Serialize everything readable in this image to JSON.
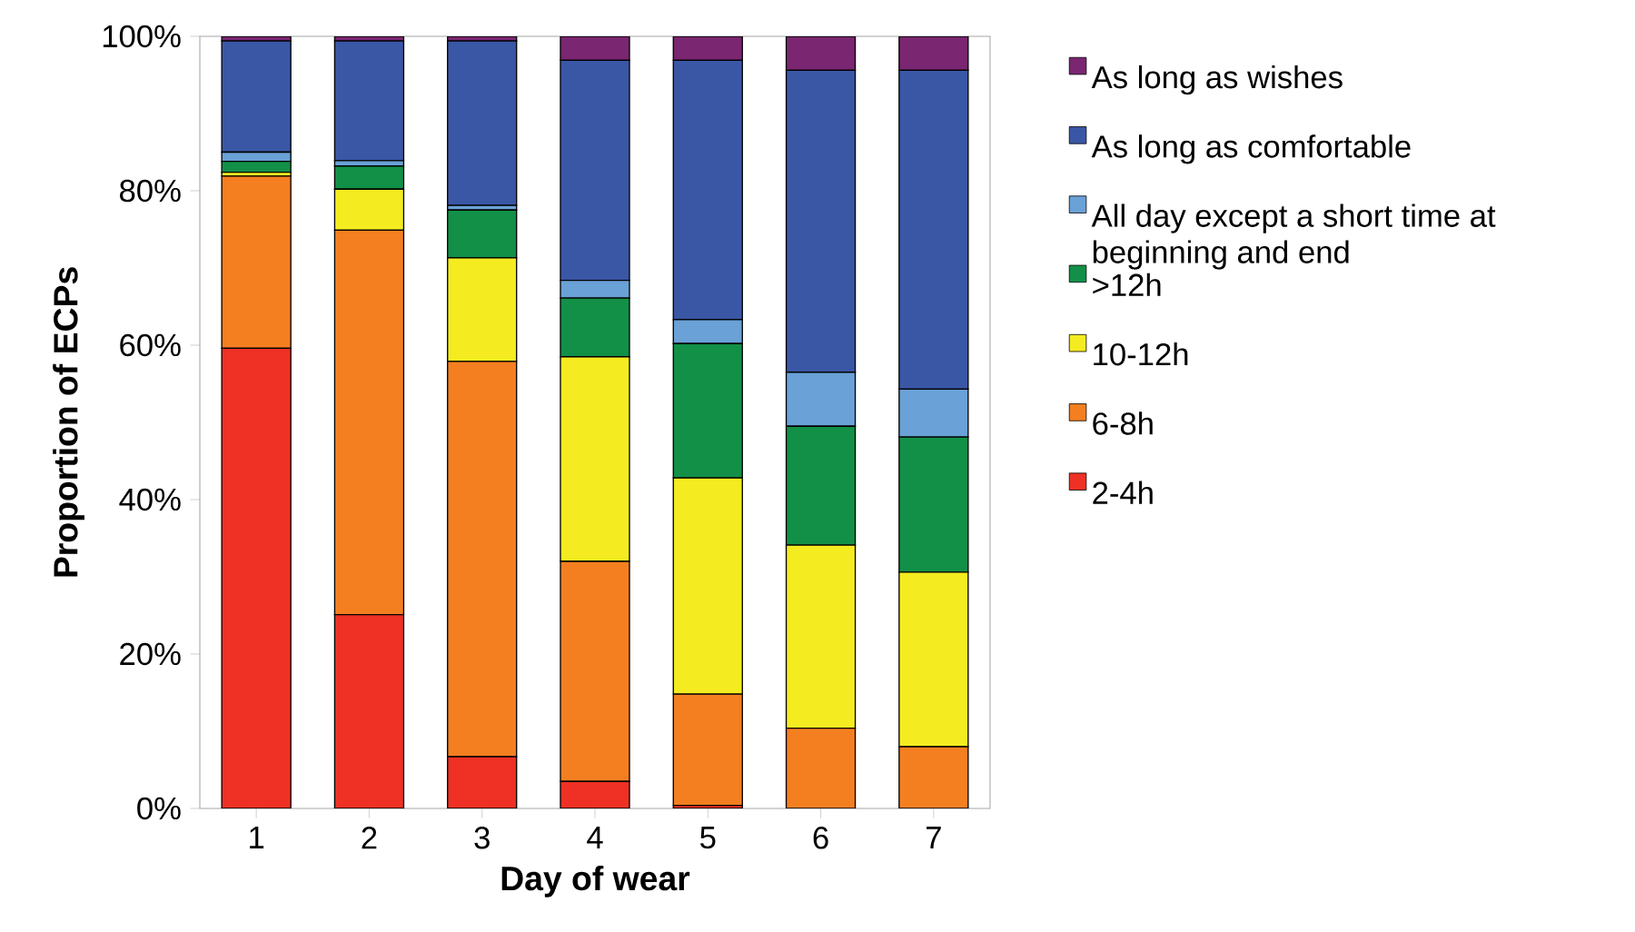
{
  "chart_data": {
    "type": "bar",
    "stacked": true,
    "xlabel": "Day of wear",
    "ylabel": "Proportion of ECPs",
    "categories": [
      "1",
      "2",
      "3",
      "4",
      "5",
      "6",
      "7"
    ],
    "series": [
      {
        "name": "2-4h",
        "color": "#ee3124",
        "values": [
          59.6,
          25.1,
          6.7,
          3.5,
          0.4,
          0,
          0
        ]
      },
      {
        "name": "6-8h",
        "color": "#f47f20",
        "values": [
          22.3,
          49.8,
          51.2,
          28.5,
          14.4,
          10.4,
          8.0
        ]
      },
      {
        "name": "10-12h",
        "color": "#f4ec20",
        "values": [
          0.5,
          5.3,
          13.4,
          26.5,
          28.0,
          23.7,
          22.6
        ]
      },
      {
        "name": ">12h",
        "color": "#129048",
        "values": [
          1.4,
          3.0,
          6.2,
          7.6,
          17.4,
          15.4,
          17.5
        ]
      },
      {
        "name": "All day except a short time at beginning and end",
        "color": "#6aa1d6",
        "values": [
          1.2,
          0.7,
          0.6,
          2.3,
          3.1,
          7.0,
          6.2
        ]
      },
      {
        "name": "As long as comfortable",
        "color": "#3a57a6",
        "values": [
          14.4,
          15.5,
          21.3,
          28.5,
          33.6,
          39.1,
          41.3
        ]
      },
      {
        "name": "As long as wishes",
        "color": "#7a2671",
        "values": [
          0.6,
          0.6,
          0.6,
          3.1,
          3.1,
          4.4,
          4.4
        ]
      }
    ],
    "ylim": [
      0,
      100
    ],
    "yticks": [
      {
        "value": 0,
        "label": "0%"
      },
      {
        "value": 20,
        "label": "20%"
      },
      {
        "value": 40,
        "label": "40%"
      },
      {
        "value": 60,
        "label": "60%"
      },
      {
        "value": 80,
        "label": "80%"
      },
      {
        "value": 100,
        "label": "100%"
      }
    ],
    "legend": "right",
    "grid": false
  }
}
